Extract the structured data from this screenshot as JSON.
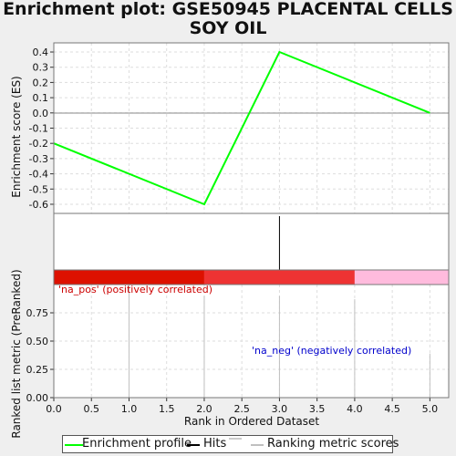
{
  "chart_data": [
    {
      "panel": "enrichment-profile",
      "type": "line",
      "title": "Enrichment plot: GSE50945 PLACENTAL CELLS SOY OIL",
      "ylabel": "Enrichment score (ES)",
      "ylim": [
        -0.66,
        0.46
      ],
      "yticks": [
        "0.4",
        "0.3",
        "0.2",
        "0.1",
        "0.0",
        "-0.1",
        "-0.2",
        "-0.3",
        "-0.4",
        "-0.5",
        "-0.6"
      ],
      "ytick_values": [
        0.4,
        0.3,
        0.2,
        0.1,
        0.0,
        -0.1,
        -0.2,
        -0.3,
        -0.4,
        -0.5,
        -0.6
      ],
      "grid": true,
      "series": [
        {
          "name": "Enrichment profile",
          "color": "#00ff00",
          "x": [
            0,
            2,
            3,
            5
          ],
          "y": [
            -0.2,
            -0.6,
            0.4,
            0.0
          ]
        }
      ]
    },
    {
      "panel": "hits",
      "type": "bar",
      "series": [
        {
          "name": "Hits",
          "color": "#000000",
          "x": [
            3
          ]
        }
      ]
    },
    {
      "panel": "ranked-list",
      "type": "bar",
      "xlabel": "Rank in Ordered Dataset",
      "ylabel": "Ranked list metric (PreRanked)",
      "xlim": [
        0,
        5.25
      ],
      "ylim": [
        0,
        1.0
      ],
      "xticks": [
        "0.0",
        "0.5",
        "1.0",
        "1.5",
        "2.0",
        "2.5",
        "3.0",
        "3.5",
        "4.0",
        "4.5",
        "5.0"
      ],
      "xtick_values": [
        0,
        0.5,
        1,
        1.5,
        2,
        2.5,
        3,
        3.5,
        4,
        4.5,
        5
      ],
      "yticks": [
        "0.75",
        "0.50",
        "0.25",
        "0.00"
      ],
      "ytick_values": [
        0.75,
        0.5,
        0.25,
        0.0
      ],
      "grid": true,
      "series": [
        {
          "name": "Ranking metric scores",
          "color": "#c0c0c0",
          "x": [
            1,
            2,
            3,
            4,
            5
          ],
          "values": [
            1.0,
            0.9,
            0.9,
            0.87,
            0.39
          ]
        }
      ],
      "color_bar": [
        {
          "from": 0,
          "to": 2,
          "color": "#dd1100"
        },
        {
          "from": 2,
          "to": 4,
          "color": "#ee3333"
        },
        {
          "from": 4,
          "to": 5.25,
          "color": "#ffbbdd"
        }
      ],
      "annotations": [
        {
          "text": "'na_pos' (positively correlated)",
          "color": "#cc0000"
        },
        {
          "text": "'na_neg' (negatively correlated)",
          "color": "#0000cc"
        }
      ]
    }
  ],
  "legend": [
    {
      "label": "Enrichment profile",
      "color": "#00ff00"
    },
    {
      "label": "Hits",
      "color": "#000000"
    },
    {
      "label": "Ranking metric scores",
      "color": "#c0c0c0"
    }
  ]
}
